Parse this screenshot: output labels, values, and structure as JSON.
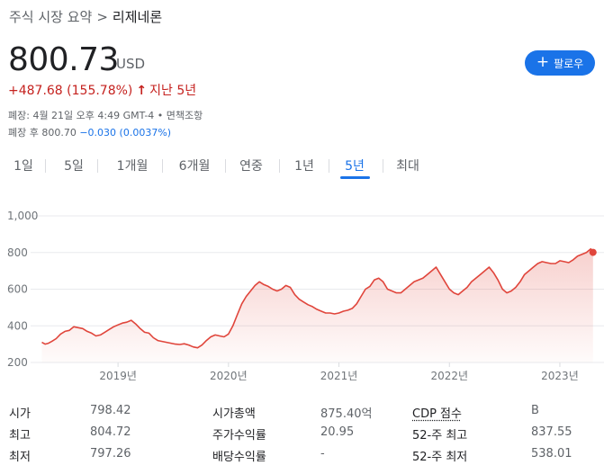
{
  "breadcrumb": {
    "parent": "주식 시장 요약",
    "separator": ">",
    "current": "리제네론"
  },
  "quote": {
    "price": "800.73",
    "currency": "USD",
    "change": "+487.68 (155.78%)",
    "change_arrow": "↑",
    "change_period": "지난 5년",
    "closed_info": "폐장: 4월 21일 오후 4:49 GMT-4 • 면책조항",
    "after_hours_label": "폐장 후 800.70",
    "after_hours_change": "−0.030 (0.0037%)",
    "up_color": "#c5221f",
    "down_color": "#1a73e8"
  },
  "follow_button": {
    "label": "팔로우",
    "icon": "plus-icon",
    "color": "#1a73e8"
  },
  "tabs": [
    {
      "label": "1일"
    },
    {
      "label": "5일"
    },
    {
      "label": "1개월"
    },
    {
      "label": "6개월"
    },
    {
      "label": "연중"
    },
    {
      "label": "1년"
    },
    {
      "label": "5년",
      "active": true
    },
    {
      "label": "최대"
    }
  ],
  "chart_data": {
    "type": "area",
    "title": "",
    "xlabel": "",
    "ylabel": "",
    "line_color": "#e0453b",
    "ylim": [
      200,
      1000
    ],
    "grid": true,
    "y_ticks": [
      "1,000",
      "800",
      "600",
      "400",
      "200"
    ],
    "x_ticks": [
      {
        "label": "2019년",
        "x": 2019.0
      },
      {
        "label": "2020년",
        "x": 2020.0
      },
      {
        "label": "2021년",
        "x": 2021.0
      },
      {
        "label": "2022년",
        "x": 2022.0
      },
      {
        "label": "2023년",
        "x": 2023.0
      }
    ],
    "series": [
      {
        "x": [
          2018.31,
          2018.34,
          2018.37,
          2018.4,
          2018.44,
          2018.48,
          2018.52,
          2018.56,
          2018.6,
          2018.64,
          2018.68,
          2018.72,
          2018.76,
          2018.8,
          2018.84,
          2018.88,
          2018.92,
          2018.96,
          2019.0,
          2019.04,
          2019.08,
          2019.12,
          2019.16,
          2019.2,
          2019.24,
          2019.28,
          2019.32,
          2019.36,
          2019.4,
          2019.44,
          2019.48,
          2019.52,
          2019.56,
          2019.6,
          2019.64,
          2019.68,
          2019.72,
          2019.76,
          2019.8,
          2019.84,
          2019.88,
          2019.92,
          2019.96,
          2020.0,
          2020.04,
          2020.08,
          2020.12,
          2020.16,
          2020.2,
          2020.24,
          2020.28,
          2020.32,
          2020.36,
          2020.4,
          2020.44,
          2020.48,
          2020.52,
          2020.56,
          2020.6,
          2020.64,
          2020.68,
          2020.72,
          2020.76,
          2020.8,
          2020.84,
          2020.88,
          2020.92,
          2020.96,
          2021.0,
          2021.04,
          2021.08,
          2021.12,
          2021.16,
          2021.2,
          2021.24,
          2021.28,
          2021.32,
          2021.36,
          2021.4,
          2021.44,
          2021.48,
          2021.52,
          2021.56,
          2021.6,
          2021.64,
          2021.68,
          2021.72,
          2021.76,
          2021.8,
          2021.84,
          2021.88,
          2021.92,
          2021.96,
          2022.0,
          2022.04,
          2022.08,
          2022.12,
          2022.16,
          2022.2,
          2022.24,
          2022.28,
          2022.32,
          2022.36,
          2022.4,
          2022.44,
          2022.48,
          2022.52,
          2022.56,
          2022.6,
          2022.64,
          2022.68,
          2022.72,
          2022.76,
          2022.8,
          2022.84,
          2022.88,
          2022.92,
          2022.96,
          2023.0,
          2023.04,
          2023.08,
          2023.12,
          2023.16,
          2023.2,
          2023.24,
          2023.28,
          2023.3
        ],
        "values": [
          310,
          300,
          305,
          315,
          330,
          355,
          370,
          375,
          395,
          390,
          385,
          370,
          360,
          345,
          350,
          365,
          380,
          395,
          405,
          415,
          420,
          430,
          410,
          385,
          365,
          360,
          335,
          320,
          315,
          310,
          305,
          300,
          298,
          302,
          295,
          285,
          280,
          295,
          320,
          340,
          350,
          345,
          340,
          355,
          400,
          460,
          520,
          560,
          590,
          620,
          640,
          625,
          615,
          600,
          590,
          600,
          620,
          610,
          570,
          545,
          530,
          515,
          505,
          490,
          480,
          470,
          470,
          465,
          470,
          480,
          485,
          495,
          520,
          560,
          600,
          615,
          650,
          660,
          640,
          600,
          590,
          580,
          580,
          600,
          620,
          640,
          650,
          660,
          680,
          700,
          720,
          680,
          640,
          600,
          580,
          570,
          590,
          610,
          640,
          660,
          680,
          700,
          720,
          690,
          650,
          600,
          580,
          590,
          610,
          640,
          680,
          700,
          720,
          740,
          750,
          745,
          740,
          740,
          755,
          750,
          745,
          760,
          780,
          790,
          800,
          820,
          800.73
        ]
      }
    ],
    "last_point_marker": true
  },
  "stats": {
    "col1": [
      {
        "label": "시가",
        "value": "798.42"
      },
      {
        "label": "최고",
        "value": "804.72"
      },
      {
        "label": "최저",
        "value": "797.26"
      }
    ],
    "col2": [
      {
        "label": "시가총액",
        "value": "875.40억"
      },
      {
        "label": "주가수익률",
        "value": "20.95"
      },
      {
        "label": "배당수익률",
        "value": "-"
      }
    ],
    "col3": [
      {
        "label": "CDP 점수",
        "value": "B"
      },
      {
        "label": "52-주 최고",
        "value": "837.55"
      },
      {
        "label": "52-주 최저",
        "value": "538.01"
      }
    ]
  }
}
